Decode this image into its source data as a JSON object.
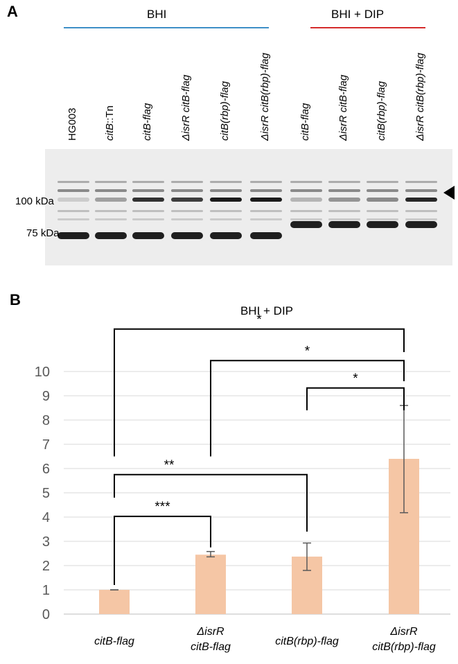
{
  "panel_a": {
    "letter": "A",
    "groups": [
      "BHI",
      "BHI + DIP"
    ],
    "lanes": [
      {
        "strain": "HG003",
        "suffix": "",
        "italic": false
      },
      {
        "strain": "citB",
        "suffix": "::Tn",
        "italic": true
      },
      {
        "strain": "citB-flag",
        "suffix": "",
        "italic": true
      },
      {
        "strain": "ΔisrR citB-flag",
        "suffix": "",
        "italic": true
      },
      {
        "strain": "citB(rbp)-flag",
        "suffix": "",
        "italic": true
      },
      {
        "strain": "ΔisrR citB(rbp)-flag",
        "suffix": "",
        "italic": true
      },
      {
        "strain": "citB-flag",
        "suffix": "",
        "italic": true
      },
      {
        "strain": "ΔisrR citB-flag",
        "suffix": "",
        "italic": true
      },
      {
        "strain": "citB(rbp)-flag",
        "suffix": "",
        "italic": true
      },
      {
        "strain": "ΔisrR citB(rbp)-flag",
        "suffix": "",
        "italic": true
      }
    ],
    "markers": [
      "100 kDa",
      "75 kDa"
    ]
  },
  "panel_b": {
    "letter": "B"
  },
  "chart_data": {
    "type": "bar",
    "title": "BHI + DIP",
    "xlabel": "",
    "ylabel": "",
    "ylim": [
      0,
      10
    ],
    "yticks": [
      0,
      1,
      2,
      3,
      4,
      5,
      6,
      7,
      8,
      9,
      10
    ],
    "grid": true,
    "bar_color": "#f5c6a5",
    "categories": [
      [
        "citB-flag"
      ],
      [
        "ΔisrR",
        "citB-flag"
      ],
      [
        "citB(rbp)-flag"
      ],
      [
        "ΔisrR",
        "citB(rbp)-flag"
      ]
    ],
    "values": [
      1.0,
      2.45,
      2.37,
      6.4
    ],
    "error": [
      [
        1.0,
        1.0
      ],
      [
        2.36,
        2.58
      ],
      [
        1.8,
        2.93
      ],
      [
        4.18,
        8.6
      ]
    ],
    "significance": [
      {
        "from": 0,
        "to": 1,
        "label": "***",
        "level": 4.03
      },
      {
        "from": 0,
        "to": 2,
        "label": "**",
        "level": 5.75
      },
      {
        "from": 2,
        "to": 3,
        "label": "*",
        "level": 9.32
      },
      {
        "from": 1,
        "to": 3,
        "label": "*",
        "level": 10.45
      },
      {
        "from": 0,
        "to": 3,
        "label": "*",
        "level": 11.75
      }
    ]
  }
}
